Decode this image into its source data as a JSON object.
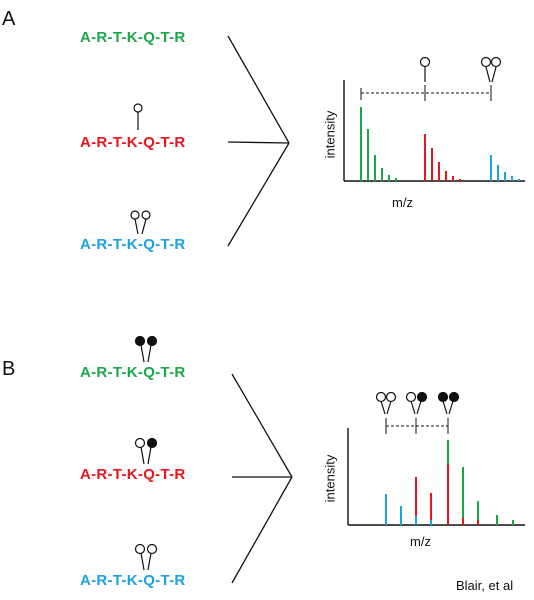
{
  "panels": {
    "a": {
      "label": "A",
      "peptides": [
        "A-R-T-K-Q-T-R",
        "A-R-T-K-Q-T-R",
        "A-R-T-K-Q-T-R"
      ],
      "ylabel": "intensity",
      "xlabel": "m/z"
    },
    "b": {
      "label": "B",
      "peptides": [
        "A-R-T-K-Q-T-R",
        "A-R-T-K-Q-T-R",
        "A-R-T-K-Q-T-R"
      ],
      "ylabel": "intensity",
      "xlabel": "m/z"
    }
  },
  "colors": {
    "green": "#1aa84a",
    "red": "#e8141e",
    "blue": "#1aa3e0",
    "ink": "#111111"
  },
  "credit": "Blair, et al"
}
